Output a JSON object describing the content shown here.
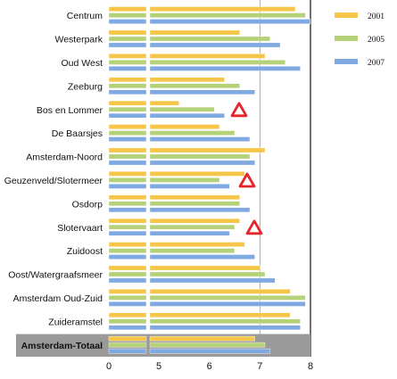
{
  "chart_data": {
    "type": "bar",
    "orientation": "horizontal",
    "categories": [
      "Centrum",
      "Westerpark",
      "Oud West",
      "Zeeburg",
      "Bos en Lommer",
      "De Baarsjes",
      "Amsterdam-Noord",
      "Geuzenveld/Slotermeer",
      "Osdorp",
      "Slotervaart",
      "Zuidoost",
      "Oost/Watergraafsmeer",
      "Amsterdam Oud-Zuid",
      "Zuideramstel",
      "Amsterdam-Totaal"
    ],
    "series": [
      {
        "name": "2001",
        "color": "#f5c64a",
        "values": [
          7.7,
          6.6,
          7.1,
          6.3,
          5.4,
          6.2,
          7.1,
          6.7,
          6.6,
          6.6,
          6.7,
          7.0,
          7.6,
          7.6,
          6.9
        ]
      },
      {
        "name": "2005",
        "color": "#b5d27a",
        "values": [
          7.9,
          7.2,
          7.5,
          6.6,
          6.1,
          6.5,
          6.8,
          6.2,
          6.6,
          6.5,
          6.5,
          7.1,
          7.9,
          7.8,
          7.1
        ]
      },
      {
        "name": "2007",
        "color": "#7fa9e0",
        "values": [
          8.0,
          7.4,
          7.8,
          6.9,
          6.3,
          6.8,
          6.9,
          6.4,
          6.8,
          6.4,
          6.9,
          7.3,
          7.9,
          7.8,
          7.2
        ]
      }
    ],
    "xticks": [
      "0",
      "5",
      "6",
      "7",
      "8"
    ],
    "axis_break": "0 to 5",
    "xlim": [
      5,
      8
    ],
    "highlighted_category": "Amsterdam-Totaal",
    "warning_markers": [
      "Bos en Lommer",
      "Geuzenveld/Slotermeer",
      "Slotervaart"
    ],
    "legend": [
      "2001",
      "2005",
      "2007"
    ],
    "legend_position": "top-right",
    "grid": "vertical lines at 7 and 8",
    "xlabel": "",
    "ylabel": "",
    "title": ""
  },
  "colors": {
    "highlight_band": "#9a9a9a",
    "warning": "#e8242b"
  }
}
